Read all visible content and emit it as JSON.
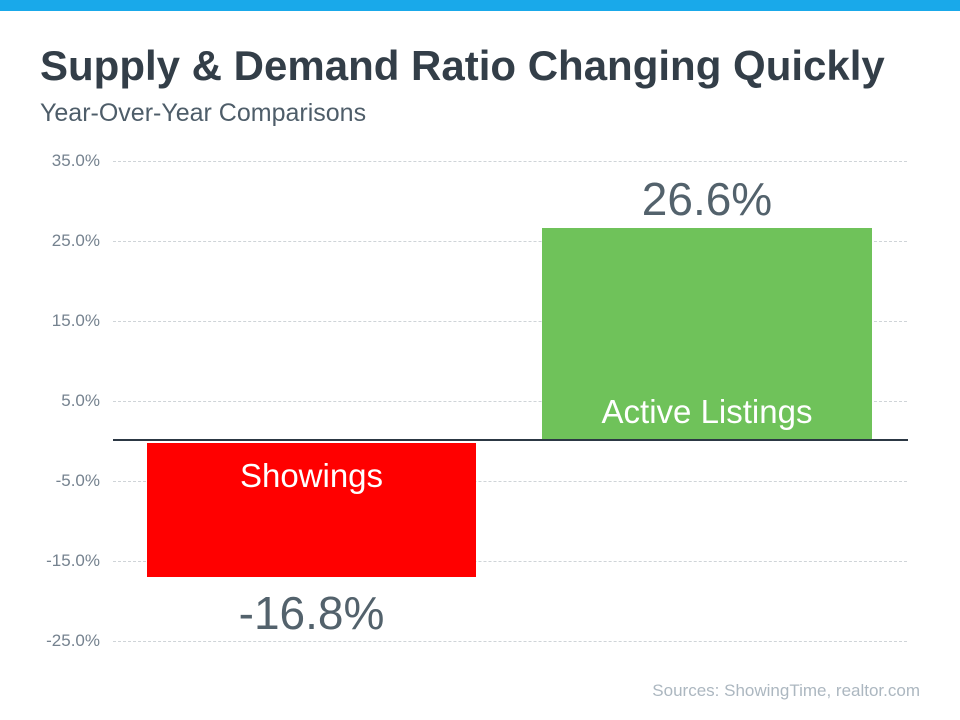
{
  "page": {
    "accent_color": "#19A9EA",
    "background_color": "#FFFFFF"
  },
  "header": {
    "title": "Supply & Demand Ratio Changing Quickly",
    "subtitle": "Year-Over-Year Comparisons"
  },
  "footer": {
    "sources": "Sources: ShowingTime, realtor.com"
  },
  "chart_data": {
    "type": "bar",
    "title": "Supply & Demand Ratio Changing Quickly",
    "subtitle": "Year-Over-Year Comparisons",
    "categories": [
      "Showings",
      "Active Listings"
    ],
    "values": [
      -16.8,
      26.6
    ],
    "value_labels": [
      "-16.8%",
      "26.6%"
    ],
    "series": [
      {
        "name": "Showings",
        "value": -16.8,
        "label": "-16.8%",
        "color": "#FF0000"
      },
      {
        "name": "Active Listings",
        "value": 26.6,
        "label": "26.6%",
        "color": "#6FC25A"
      }
    ],
    "xlabel": "",
    "ylabel": "",
    "ylim": [
      -25,
      35
    ],
    "ytick_interval": 10,
    "ytick_labels": [
      "35.0%",
      "25.0%",
      "15.0%",
      "5.0%",
      "-5.0%",
      "-15.0%",
      "-25.0%"
    ],
    "grid": true,
    "gridline_color": "#CFD4D8",
    "axis_line_color": "#2C3844",
    "legend_position": "none",
    "source": "Sources: ShowingTime, realtor.com"
  }
}
